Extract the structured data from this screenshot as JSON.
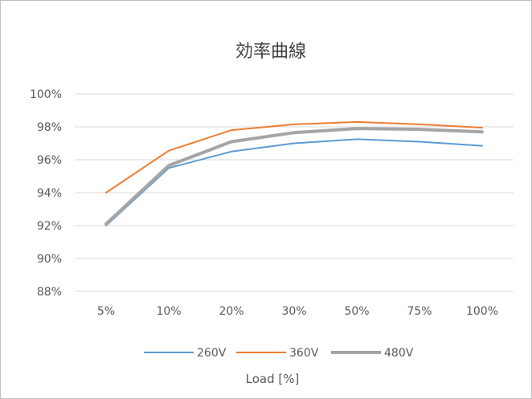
{
  "chart_data": {
    "type": "line",
    "title": "効率曲線",
    "xlabel": "Load [%]",
    "ylabel": "",
    "categories": [
      "5%",
      "10%",
      "20%",
      "30%",
      "50%",
      "75%",
      "100%"
    ],
    "ylim": [
      0.88,
      1.0
    ],
    "ytick_values": [
      0.88,
      0.9,
      0.92,
      0.94,
      0.96,
      0.98,
      1.0
    ],
    "ytick_labels": [
      "88%",
      "90%",
      "92%",
      "94%",
      "96%",
      "98%",
      "100%"
    ],
    "grid": true,
    "legend_position": "bottom",
    "series": [
      {
        "name": "260V",
        "color": "#5b9bd5",
        "values": [
          0.92,
          0.955,
          0.965,
          0.97,
          0.9725,
          0.971,
          0.9685
        ]
      },
      {
        "name": "360V",
        "color": "#ed7d31",
        "values": [
          0.94,
          0.9655,
          0.978,
          0.9815,
          0.983,
          0.9815,
          0.9795
        ]
      },
      {
        "name": "480V",
        "color": "#a5a5a5",
        "values": [
          0.921,
          0.9565,
          0.971,
          0.9765,
          0.979,
          0.9785,
          0.977
        ]
      }
    ]
  }
}
